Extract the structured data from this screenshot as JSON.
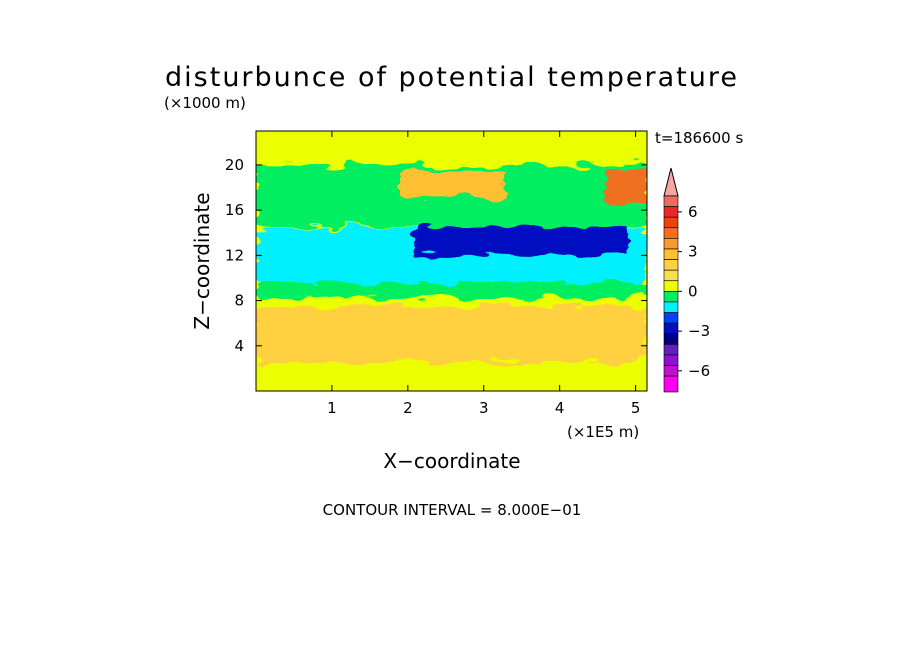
{
  "chart_data": {
    "type": "heatmap",
    "title": "disturbunce of potential temperature",
    "xlabel": "X−coordinate",
    "ylabel": "Z−coordinate",
    "x_unit": "(×1E5 m)",
    "y_unit": "(×1000 m)",
    "time_label": "t=186600 s",
    "contour_note": "CONTOUR INTERVAL = 8.000E−01",
    "xlim": [
      0,
      5.15
    ],
    "ylim": [
      0,
      23
    ],
    "x_ticks": [
      1,
      2,
      3,
      4,
      5
    ],
    "y_ticks": [
      4,
      8,
      12,
      16,
      20
    ],
    "colorbar": {
      "ticks": [
        6,
        3,
        0,
        -3,
        -6
      ],
      "tick_labels": [
        "6",
        "3",
        "0",
        "−3",
        "−6"
      ],
      "levels": [
        {
          "min": 7.2,
          "max": null,
          "color": "#f4a8a0"
        },
        {
          "min": 6.4,
          "max": 7.2,
          "color": "#f06a60"
        },
        {
          "min": 5.6,
          "max": 6.4,
          "color": "#e82828"
        },
        {
          "min": 4.8,
          "max": 5.6,
          "color": "#f04010"
        },
        {
          "min": 4.0,
          "max": 4.8,
          "color": "#f07020"
        },
        {
          "min": 3.2,
          "max": 4.0,
          "color": "#f89a30"
        },
        {
          "min": 2.4,
          "max": 3.2,
          "color": "#ffc030"
        },
        {
          "min": 1.6,
          "max": 2.4,
          "color": "#ffd040"
        },
        {
          "min": 0.8,
          "max": 1.6,
          "color": "#f4e050"
        },
        {
          "min": 0.0,
          "max": 0.8,
          "color": "#ecff00"
        },
        {
          "min": -0.8,
          "max": 0.0,
          "color": "#00ee60"
        },
        {
          "min": -1.6,
          "max": -0.8,
          "color": "#00f0ff"
        },
        {
          "min": -2.4,
          "max": -1.6,
          "color": "#0040ff"
        },
        {
          "min": -3.2,
          "max": -2.4,
          "color": "#0010c0"
        },
        {
          "min": -4.0,
          "max": -3.2,
          "color": "#000080"
        },
        {
          "min": -4.8,
          "max": -4.0,
          "color": "#6020c0"
        },
        {
          "min": -5.6,
          "max": -4.8,
          "color": "#9010d0"
        },
        {
          "min": -6.4,
          "max": -5.6,
          "color": "#c010d0"
        },
        {
          "min": null,
          "max": -6.4,
          "color": "#ff00ee"
        }
      ]
    },
    "regions": [
      {
        "value": 0.3,
        "note": "background"
      },
      {
        "value": 3.0,
        "z": [
          3.5,
          5.5
        ],
        "x": [
          0,
          2.5
        ]
      },
      {
        "value": 2.0,
        "z": [
          2.5,
          7.5
        ],
        "x": [
          0,
          5.15
        ]
      },
      {
        "value": -0.5,
        "z": [
          8.2,
          9.6
        ],
        "x": [
          0,
          5.15
        ]
      },
      {
        "value": -1.2,
        "z": [
          9.6,
          14.4
        ],
        "x": [
          0,
          5.15
        ]
      },
      {
        "value": -2.6,
        "z": [
          12.0,
          14.8
        ],
        "x": [
          2.1,
          4.9
        ]
      },
      {
        "value": -0.5,
        "z": [
          14.5,
          20.0
        ],
        "x": [
          0,
          5.15
        ]
      },
      {
        "value": 2.5,
        "z": [
          17.0,
          19.5
        ],
        "x": [
          1.9,
          3.3
        ]
      },
      {
        "value": 4.0,
        "z": [
          16.5,
          19.5
        ],
        "x": [
          4.6,
          5.15
        ]
      }
    ]
  }
}
